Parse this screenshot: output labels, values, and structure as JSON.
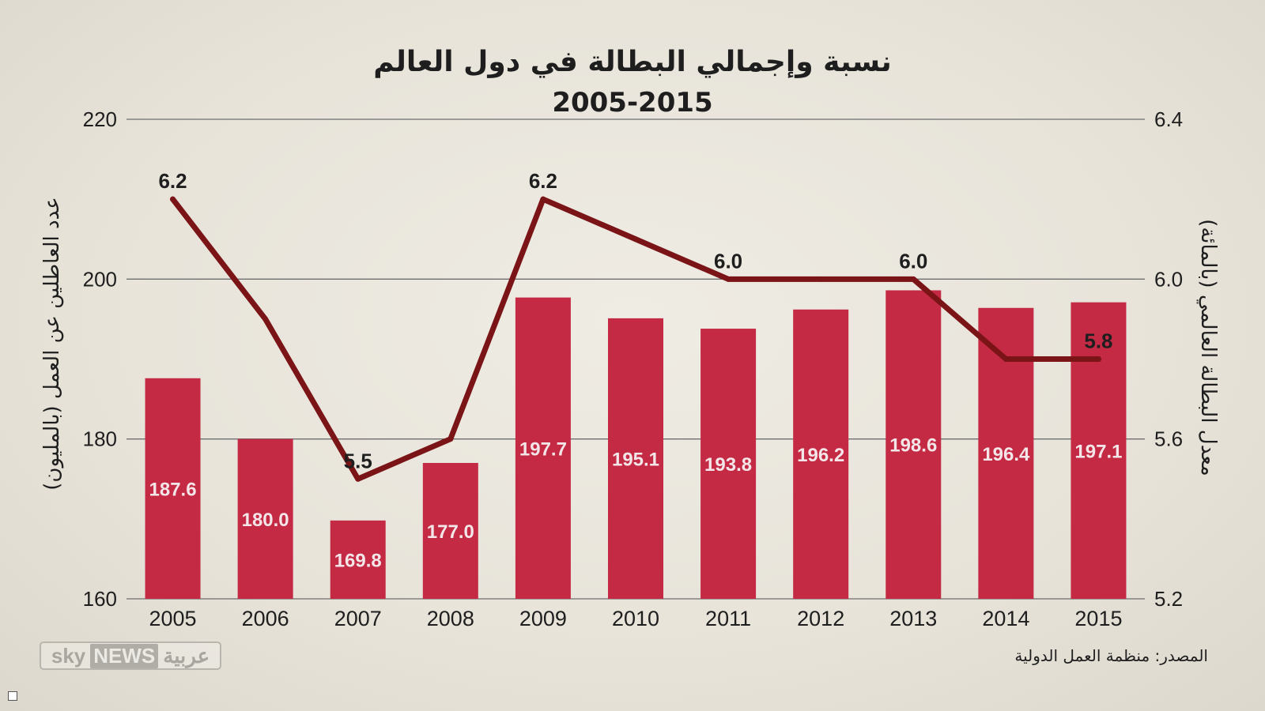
{
  "chart_data": {
    "type": "bar",
    "title": "نسبة وإجمالي البطالة في دول العالم",
    "subtitle": "2005-2015",
    "categories": [
      "2005",
      "2006",
      "2007",
      "2008",
      "2009",
      "2010",
      "2011",
      "2012",
      "2013",
      "2014",
      "2015"
    ],
    "series": [
      {
        "name": "عدد العاطلين عن العمل (بالمليون)",
        "kind": "bar",
        "axis": "left",
        "values": [
          187.6,
          180.0,
          169.8,
          177.0,
          197.7,
          195.1,
          193.8,
          196.2,
          198.6,
          196.4,
          197.1
        ],
        "labels": [
          "187.6",
          "180.0",
          "169.8",
          "177.0",
          "197.7",
          "195.1",
          "193.8",
          "196.2",
          "198.6",
          "196.4",
          "197.1"
        ]
      },
      {
        "name": "معدل البطالة العالمي (بالمائة)",
        "kind": "line",
        "axis": "right",
        "values": [
          6.2,
          5.9,
          5.5,
          5.6,
          6.2,
          6.1,
          6.0,
          6.0,
          6.0,
          5.8,
          5.8
        ],
        "labels": [
          "6.2",
          "",
          "5.5",
          "",
          "6.2",
          "",
          "6.0",
          "",
          "6.0",
          "",
          "5.8"
        ]
      }
    ],
    "ylabel": "عدد العاطلين عن العمل (بالمليون)",
    "y2label": "معدل البطالة العالمي (بالمائة)",
    "ylim": [
      160,
      220
    ],
    "y2lim": [
      5.2,
      6.4
    ],
    "yticks": [
      "160",
      "180",
      "200",
      "220"
    ],
    "y2ticks": [
      "5.2",
      "5.6",
      "6.0",
      "6.4"
    ],
    "grid": true
  },
  "source_label": "المصدر: منظمة العمل الدولية",
  "logo": {
    "sky": "sky",
    "news": "NEWS",
    "arabic": "عربية"
  },
  "colors": {
    "bar": "#c42a44",
    "line": "#7a1416",
    "grid": "#6e6e6e",
    "text": "#1e1e1e",
    "bar_label": "#f4e6e8"
  }
}
